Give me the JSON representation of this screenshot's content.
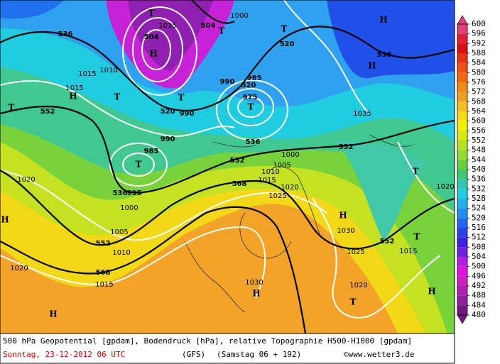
{
  "colorbar": {
    "ticks": [
      600,
      596,
      592,
      588,
      584,
      580,
      576,
      572,
      568,
      564,
      560,
      556,
      552,
      548,
      544,
      540,
      536,
      532,
      528,
      524,
      520,
      516,
      512,
      508,
      504,
      500,
      496,
      492,
      488,
      484,
      480
    ],
    "colors": [
      "#e0407a",
      "#e0203a",
      "#d81010",
      "#e83010",
      "#f05010",
      "#f06a10",
      "#f08a18",
      "#f0a020",
      "#f4c020",
      "#f5dc10",
      "#f0f000",
      "#d4ec10",
      "#b4e420",
      "#90dc30",
      "#68d040",
      "#40c870",
      "#30c8b0",
      "#20d0e0",
      "#20b0f0",
      "#2090f0",
      "#2068f0",
      "#3040e8",
      "#4020e0",
      "#7020e0",
      "#b020e0",
      "#e010e0",
      "#d020c0",
      "#b020b0",
      "#9020a0",
      "#701880"
    ]
  },
  "map_labels": [
    "536",
    "536",
    "552",
    "552",
    "552",
    "552",
    "552",
    "568",
    "568",
    "536",
    "536",
    "520",
    "520",
    "520",
    "504",
    "504",
    "1000",
    "1035",
    "1015",
    "1015",
    "1010",
    "990",
    "990",
    "985",
    "975",
    "990",
    "985",
    "1000",
    "1005",
    "1010",
    "1015",
    "1020",
    "1025",
    "1020",
    "1020",
    "1015",
    "1010",
    "1005",
    "1000",
    "995",
    "1030",
    "1030",
    "1025",
    "1020",
    "1015",
    "1020",
    "1035",
    "H",
    "H",
    "H",
    "T",
    "T",
    "T",
    "T",
    "T",
    "T",
    "T",
    "T",
    "H",
    "H",
    "H",
    "H",
    "H",
    "T",
    "T",
    "H",
    "T"
  ],
  "footer": {
    "line1": "500 hPa Geopotential [gpdam], Bodendruck [hPa], relative Topographie H500-H1000 [gpdam]",
    "date": "Sonntag, 23-12-2012  06 UTC",
    "model": "(GFS)",
    "run": "(Samstag 06 + 192)",
    "credit": "©www.wetter3.de"
  }
}
